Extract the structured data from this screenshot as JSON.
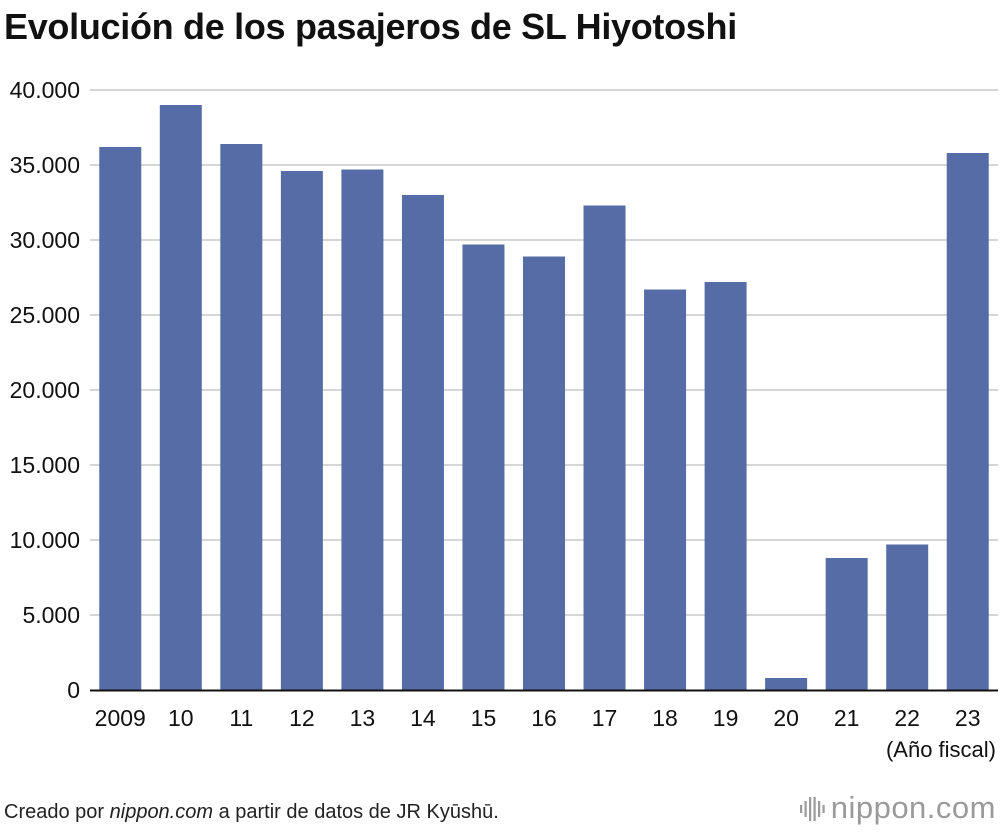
{
  "title": "Evolución de los pasajeros de SL Hiyotoshi",
  "source": {
    "prefix": "Creado por ",
    "site": "nippon.com",
    "suffix": " a partir de datos de JR Kyūshū."
  },
  "logo": {
    "text_main": "nippon",
    "text_dot": ".",
    "text_tld": "com",
    "mark_icon": "nippon-logo-bars-icon"
  },
  "colors": {
    "bar": "#566ca6",
    "grid": "#c8c8c8",
    "axis": "#111111",
    "text": "#111111"
  },
  "chart_data": {
    "type": "bar",
    "title": "Evolución de los pasajeros de SL Hiyotoshi",
    "xlabel": "(Año fiscal)",
    "ylabel": "",
    "categories": [
      "2009",
      "10",
      "11",
      "12",
      "13",
      "14",
      "15",
      "16",
      "17",
      "18",
      "19",
      "20",
      "21",
      "22",
      "23"
    ],
    "values": [
      36200,
      39000,
      36400,
      34600,
      34700,
      33000,
      29700,
      28900,
      32300,
      26700,
      27200,
      800,
      8800,
      9700,
      35800
    ],
    "ylim": [
      0,
      40000
    ],
    "yticks": [
      0,
      5000,
      10000,
      15000,
      20000,
      25000,
      30000,
      35000,
      40000
    ],
    "ytick_labels": [
      "0",
      "5.000",
      "10.000",
      "15.000",
      "20.000",
      "25.000",
      "30.000",
      "35.000",
      "40.000"
    ],
    "grid": true,
    "legend": "none"
  }
}
